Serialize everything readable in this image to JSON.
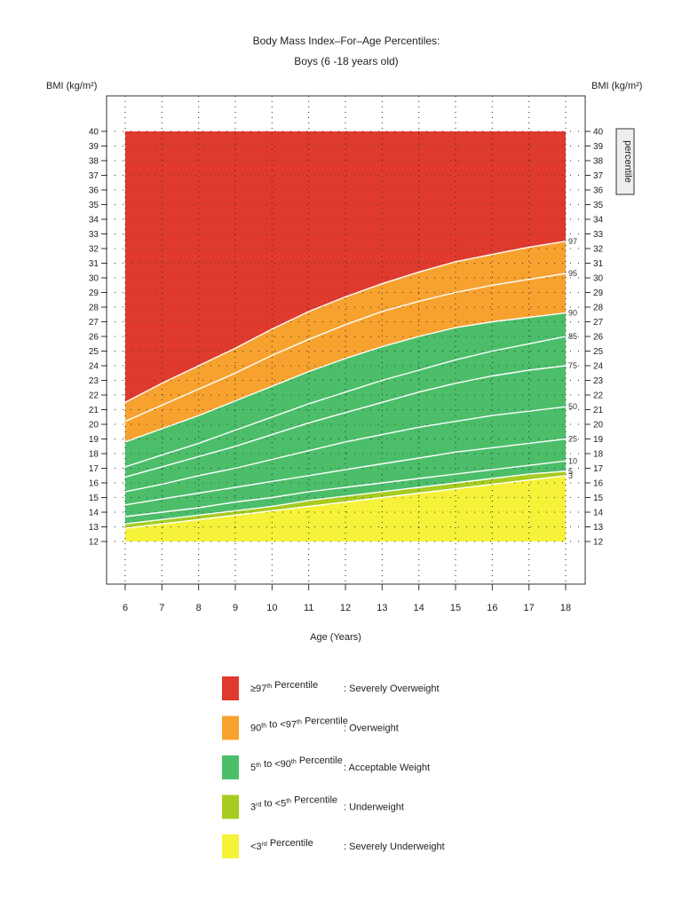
{
  "chart_data": {
    "type": "area",
    "title": "Body Mass Index–For–Age Percentiles:",
    "subtitle": "Boys (6 -18 years old)",
    "xlabel": "Age (Years)",
    "ylabel_left": "BMI (kg/m²)",
    "ylabel_right": "BMI (kg/m²)",
    "right_tag": "percentile",
    "xlim": [
      6,
      18
    ],
    "ylim": [
      12,
      40
    ],
    "x_ticks": [
      6,
      7,
      8,
      9,
      10,
      11,
      12,
      13,
      14,
      15,
      16,
      17,
      18
    ],
    "y_ticks": [
      12,
      13,
      14,
      15,
      16,
      17,
      18,
      19,
      20,
      21,
      22,
      23,
      24,
      25,
      26,
      27,
      28,
      29,
      30,
      31,
      32,
      33,
      34,
      35,
      36,
      37,
      38,
      39,
      40
    ],
    "grid": true,
    "x": [
      6,
      7,
      8,
      9,
      10,
      11,
      12,
      13,
      14,
      15,
      16,
      17,
      18
    ],
    "series": [
      {
        "name": "3",
        "values": [
          12.9,
          13.2,
          13.5,
          13.8,
          14.1,
          14.4,
          14.7,
          15.0,
          15.3,
          15.6,
          15.9,
          16.2,
          16.5
        ]
      },
      {
        "name": "5",
        "values": [
          13.2,
          13.5,
          13.8,
          14.1,
          14.4,
          14.8,
          15.1,
          15.4,
          15.7,
          16.0,
          16.3,
          16.6,
          16.8
        ]
      },
      {
        "name": "10",
        "values": [
          13.7,
          14.0,
          14.3,
          14.7,
          15.0,
          15.4,
          15.7,
          16.0,
          16.3,
          16.6,
          16.9,
          17.2,
          17.5
        ]
      },
      {
        "name": "25",
        "values": [
          14.5,
          14.9,
          15.3,
          15.7,
          16.1,
          16.5,
          16.9,
          17.3,
          17.7,
          18.1,
          18.4,
          18.7,
          19.0
        ]
      },
      {
        "name": "50",
        "values": [
          15.4,
          15.9,
          16.5,
          17.0,
          17.6,
          18.2,
          18.8,
          19.3,
          19.8,
          20.2,
          20.6,
          20.9,
          21.2
        ]
      },
      {
        "name": "75",
        "values": [
          16.4,
          17.1,
          17.8,
          18.5,
          19.3,
          20.1,
          20.8,
          21.5,
          22.2,
          22.8,
          23.3,
          23.7,
          24.0
        ]
      },
      {
        "name": "85",
        "values": [
          17.1,
          17.9,
          18.7,
          19.6,
          20.5,
          21.4,
          22.2,
          23.0,
          23.7,
          24.4,
          25.0,
          25.5,
          26.0
        ]
      },
      {
        "name": "90",
        "values": [
          18.8,
          19.7,
          20.6,
          21.6,
          22.6,
          23.6,
          24.5,
          25.3,
          26.0,
          26.6,
          27.0,
          27.3,
          27.6
        ]
      },
      {
        "name": "95",
        "values": [
          20.2,
          21.3,
          22.4,
          23.5,
          24.7,
          25.8,
          26.8,
          27.7,
          28.4,
          29.0,
          29.5,
          29.9,
          30.3
        ]
      },
      {
        "name": "97",
        "values": [
          21.5,
          22.8,
          24.0,
          25.2,
          26.5,
          27.7,
          28.7,
          29.6,
          30.4,
          31.1,
          31.6,
          32.1,
          32.5
        ]
      }
    ],
    "band_colors": {
      "severely_overweight": "#e03a2e",
      "overweight": "#f7a22f",
      "acceptable": "#4cbe6a",
      "underweight": "#a6cc1f",
      "severely_underweight": "#f6f23a",
      "line": "#ffffff"
    }
  },
  "legend": [
    {
      "color": "#e03a2e",
      "pre": "≥97",
      "sup": "th",
      "mid": "",
      "sup2": "",
      "post": " Percentile",
      "desc": ": Severely Overweight"
    },
    {
      "color": "#f7a22f",
      "pre": "90",
      "sup": "th",
      "mid": " to <97",
      "sup2": "th",
      "post": " Percentile",
      "desc": ": Overweight"
    },
    {
      "color": "#4cbe6a",
      "pre": "5",
      "sup": "th",
      "mid": " to <90",
      "sup2": "th",
      "post": " Percentile",
      "desc": ": Acceptable Weight"
    },
    {
      "color": "#a6cc1f",
      "pre": "3",
      "sup": "rd",
      "mid": " to <5",
      "sup2": "th",
      "post": " Percentile",
      "desc": ": Underweight"
    },
    {
      "color": "#f6f23a",
      "pre": "<3",
      "sup": "rd",
      "mid": "",
      "sup2": "",
      "post": " Percentile",
      "desc": ": Severely Underweight"
    }
  ]
}
